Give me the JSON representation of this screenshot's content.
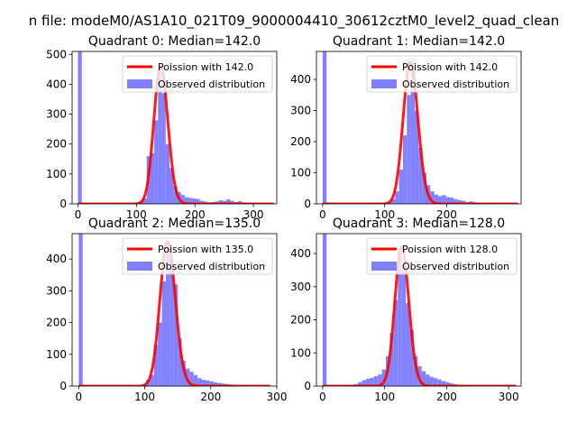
{
  "figure": {
    "suptitle": "n file: modeM0/AS1A10_021T09_9000004410_30612cztM0_level2_quad_clean"
  },
  "chart_data": [
    {
      "type": "bar",
      "title": "Quadrant 0: Median=142.0",
      "xlim": [
        -10,
        340
      ],
      "ylim": [
        0,
        510
      ],
      "xticks": [
        0,
        100,
        200,
        300
      ],
      "yticks": [
        0,
        100,
        200,
        300,
        400,
        500
      ],
      "legend_placement": "upper right",
      "legend": [
        {
          "label": "Poission with 142.0",
          "color": "#ff0000",
          "kind": "line"
        },
        {
          "label": "Observed distribution",
          "color": "#8080ff",
          "kind": "patch"
        }
      ],
      "fit": {
        "name": "Poission with 142.0",
        "mu": 142.0,
        "scale": 460,
        "xmax": 335,
        "color": "#ff0000"
      },
      "hist": {
        "bin_width": 6.5,
        "color": "#8080ff",
        "bins": [
          {
            "x": 0,
            "y": 510
          },
          {
            "x": 98,
            "y": 3
          },
          {
            "x": 104.5,
            "y": 8
          },
          {
            "x": 111,
            "y": 18
          },
          {
            "x": 117.5,
            "y": 160
          },
          {
            "x": 124,
            "y": 170
          },
          {
            "x": 130.5,
            "y": 280
          },
          {
            "x": 137,
            "y": 440
          },
          {
            "x": 143.5,
            "y": 370
          },
          {
            "x": 150,
            "y": 200
          },
          {
            "x": 156.5,
            "y": 120
          },
          {
            "x": 163,
            "y": 60
          },
          {
            "x": 169.5,
            "y": 40
          },
          {
            "x": 176,
            "y": 30
          },
          {
            "x": 182.5,
            "y": 22
          },
          {
            "x": 189,
            "y": 20
          },
          {
            "x": 195.5,
            "y": 18
          },
          {
            "x": 202,
            "y": 16
          },
          {
            "x": 208.5,
            "y": 10
          },
          {
            "x": 215,
            "y": 8
          },
          {
            "x": 221.5,
            "y": 5
          },
          {
            "x": 228,
            "y": 6
          },
          {
            "x": 234.5,
            "y": 8
          },
          {
            "x": 241,
            "y": 12
          },
          {
            "x": 247.5,
            "y": 10
          },
          {
            "x": 254,
            "y": 15
          },
          {
            "x": 260.5,
            "y": 10
          },
          {
            "x": 267,
            "y": 6
          },
          {
            "x": 273.5,
            "y": 9
          },
          {
            "x": 280,
            "y": 5
          },
          {
            "x": 286.5,
            "y": 4
          },
          {
            "x": 293,
            "y": 3
          },
          {
            "x": 306,
            "y": 2
          }
        ]
      }
    },
    {
      "type": "bar",
      "title": "Quadrant 1: Median=142.0",
      "xlim": [
        -10,
        320
      ],
      "ylim": [
        0,
        490
      ],
      "xticks": [
        0,
        100,
        200
      ],
      "yticks": [
        0,
        100,
        200,
        300,
        400
      ],
      "legend_placement": "upper right",
      "legend": [
        {
          "label": "Poission with 142.0",
          "color": "#ff0000",
          "kind": "line"
        },
        {
          "label": "Observed distribution",
          "color": "#8080ff",
          "kind": "patch"
        }
      ],
      "fit": {
        "name": "Poission with 142.0",
        "mu": 142.0,
        "scale": 455,
        "xmax": 315,
        "color": "#ff0000"
      },
      "hist": {
        "bin_width": 6.3,
        "color": "#8080ff",
        "bins": [
          {
            "x": 0,
            "y": 490
          },
          {
            "x": 98,
            "y": 3
          },
          {
            "x": 104.3,
            "y": 5
          },
          {
            "x": 110.6,
            "y": 15
          },
          {
            "x": 116.9,
            "y": 40
          },
          {
            "x": 123.2,
            "y": 110
          },
          {
            "x": 129.5,
            "y": 220
          },
          {
            "x": 135.8,
            "y": 350
          },
          {
            "x": 142.1,
            "y": 430
          },
          {
            "x": 148.4,
            "y": 300
          },
          {
            "x": 154.7,
            "y": 180
          },
          {
            "x": 161,
            "y": 100
          },
          {
            "x": 167.3,
            "y": 60
          },
          {
            "x": 173.6,
            "y": 40
          },
          {
            "x": 179.9,
            "y": 30
          },
          {
            "x": 186.2,
            "y": 25
          },
          {
            "x": 192.5,
            "y": 28
          },
          {
            "x": 198.8,
            "y": 22
          },
          {
            "x": 205.1,
            "y": 20
          },
          {
            "x": 211.4,
            "y": 15
          },
          {
            "x": 217.7,
            "y": 12
          },
          {
            "x": 224,
            "y": 10
          },
          {
            "x": 230.3,
            "y": 6
          },
          {
            "x": 236.6,
            "y": 8
          },
          {
            "x": 242.9,
            "y": 5
          },
          {
            "x": 249.2,
            "y": 3
          },
          {
            "x": 261.8,
            "y": 2
          }
        ]
      }
    },
    {
      "type": "bar",
      "title": "Quadrant 2: Median=135.0",
      "xlim": [
        -10,
        300
      ],
      "ylim": [
        0,
        480
      ],
      "xticks": [
        0,
        100,
        200,
        300
      ],
      "yticks": [
        0,
        100,
        200,
        300,
        400
      ],
      "legend_placement": "upper right",
      "legend": [
        {
          "label": "Poission with 135.0",
          "color": "#ff0000",
          "kind": "line"
        },
        {
          "label": "Observed distribution",
          "color": "#8080ff",
          "kind": "patch"
        }
      ],
      "fit": {
        "name": "Poission with 135.0",
        "mu": 135.0,
        "scale": 455,
        "xmax": 290,
        "color": "#ff0000"
      },
      "hist": {
        "bin_width": 6.0,
        "color": "#8080ff",
        "bins": [
          {
            "x": 0,
            "y": 480
          },
          {
            "x": 96,
            "y": 5
          },
          {
            "x": 102,
            "y": 20
          },
          {
            "x": 108,
            "y": 35
          },
          {
            "x": 114,
            "y": 130
          },
          {
            "x": 120,
            "y": 200
          },
          {
            "x": 126,
            "y": 330
          },
          {
            "x": 132,
            "y": 440
          },
          {
            "x": 138,
            "y": 400
          },
          {
            "x": 144,
            "y": 320
          },
          {
            "x": 150,
            "y": 150
          },
          {
            "x": 156,
            "y": 80
          },
          {
            "x": 162,
            "y": 55
          },
          {
            "x": 168,
            "y": 45
          },
          {
            "x": 174,
            "y": 35
          },
          {
            "x": 180,
            "y": 25
          },
          {
            "x": 186,
            "y": 20
          },
          {
            "x": 192,
            "y": 18
          },
          {
            "x": 198,
            "y": 15
          },
          {
            "x": 204,
            "y": 12
          },
          {
            "x": 210,
            "y": 10
          },
          {
            "x": 216,
            "y": 8
          },
          {
            "x": 222,
            "y": 6
          },
          {
            "x": 228,
            "y": 5
          },
          {
            "x": 234,
            "y": 4
          },
          {
            "x": 240,
            "y": 3
          },
          {
            "x": 252,
            "y": 2
          }
        ]
      }
    },
    {
      "type": "bar",
      "title": "Quadrant 3: Median=128.0",
      "xlim": [
        -10,
        320
      ],
      "ylim": [
        0,
        460
      ],
      "xticks": [
        0,
        100,
        200,
        300
      ],
      "yticks": [
        0,
        100,
        200,
        300,
        400
      ],
      "legend_placement": "upper right",
      "legend": [
        {
          "label": "Poission with 128.0",
          "color": "#ff0000",
          "kind": "line"
        },
        {
          "label": "Observed distribution",
          "color": "#8080ff",
          "kind": "patch"
        }
      ],
      "fit": {
        "name": "Poission with 128.0",
        "mu": 128.0,
        "scale": 420,
        "xmax": 312,
        "color": "#ff0000"
      },
      "hist": {
        "bin_width": 6.4,
        "color": "#8080ff",
        "bins": [
          {
            "x": 0,
            "y": 460
          },
          {
            "x": 38,
            "y": 2
          },
          {
            "x": 44.4,
            "y": 4
          },
          {
            "x": 50.8,
            "y": 6
          },
          {
            "x": 57.2,
            "y": 12
          },
          {
            "x": 63.6,
            "y": 18
          },
          {
            "x": 70,
            "y": 22
          },
          {
            "x": 76.4,
            "y": 25
          },
          {
            "x": 82.8,
            "y": 30
          },
          {
            "x": 89.2,
            "y": 35
          },
          {
            "x": 95.6,
            "y": 50
          },
          {
            "x": 102,
            "y": 90
          },
          {
            "x": 108.4,
            "y": 160
          },
          {
            "x": 114.8,
            "y": 260
          },
          {
            "x": 121.2,
            "y": 400
          },
          {
            "x": 127.6,
            "y": 360
          },
          {
            "x": 134,
            "y": 250
          },
          {
            "x": 140.4,
            "y": 170
          },
          {
            "x": 146.8,
            "y": 90
          },
          {
            "x": 153.2,
            "y": 60
          },
          {
            "x": 159.6,
            "y": 45
          },
          {
            "x": 166,
            "y": 35
          },
          {
            "x": 172.4,
            "y": 28
          },
          {
            "x": 178.8,
            "y": 24
          },
          {
            "x": 185.2,
            "y": 20
          },
          {
            "x": 191.6,
            "y": 15
          },
          {
            "x": 198,
            "y": 12
          },
          {
            "x": 204.4,
            "y": 8
          },
          {
            "x": 210.8,
            "y": 6
          },
          {
            "x": 217.2,
            "y": 4
          },
          {
            "x": 223.6,
            "y": 3
          },
          {
            "x": 230,
            "y": 3
          },
          {
            "x": 242.8,
            "y": 2
          }
        ]
      }
    }
  ]
}
